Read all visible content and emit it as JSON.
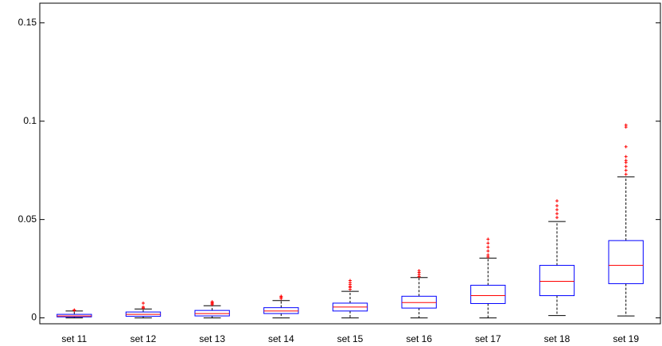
{
  "chart_data": {
    "type": "box",
    "categories": [
      "set 11",
      "set 12",
      "set 13",
      "set 14",
      "set 15",
      "set 16",
      "set 17",
      "set 18",
      "set 19"
    ],
    "boxes": [
      {
        "low": 0,
        "q1": 0.0005,
        "median": 0.001,
        "q3": 0.0018,
        "high": 0.0035,
        "outliers": [
          0.0038,
          0.004
        ]
      },
      {
        "low": 0,
        "q1": 0.0008,
        "median": 0.0018,
        "q3": 0.003,
        "high": 0.0045,
        "outliers": [
          0.005,
          0.0055,
          0.0075
        ]
      },
      {
        "low": 0,
        "q1": 0.001,
        "median": 0.0022,
        "q3": 0.0038,
        "high": 0.0062,
        "outliers": [
          0.0068,
          0.0072,
          0.0078,
          0.0082
        ]
      },
      {
        "low": 0,
        "q1": 0.0022,
        "median": 0.0035,
        "q3": 0.0052,
        "high": 0.0088,
        "outliers": [
          0.0098,
          0.0105,
          0.011
        ]
      },
      {
        "low": 0,
        "q1": 0.0035,
        "median": 0.0055,
        "q3": 0.0075,
        "high": 0.0135,
        "outliers": [
          0.0145,
          0.0155,
          0.016,
          0.017,
          0.018,
          0.019
        ]
      },
      {
        "low": 0,
        "q1": 0.005,
        "median": 0.0078,
        "q3": 0.011,
        "high": 0.0205,
        "outliers": [
          0.021,
          0.022,
          0.023,
          0.024
        ]
      },
      {
        "low": 0,
        "q1": 0.0073,
        "median": 0.0113,
        "q3": 0.0166,
        "high": 0.0304,
        "outliers": [
          0.031,
          0.032,
          0.034,
          0.036,
          0.038,
          0.04
        ]
      },
      {
        "low": 0.0012,
        "q1": 0.0113,
        "median": 0.0186,
        "q3": 0.0267,
        "high": 0.049,
        "outliers": [
          0.051,
          0.053,
          0.055,
          0.057,
          0.0595
        ]
      },
      {
        "low": 0.001,
        "q1": 0.0174,
        "median": 0.0267,
        "q3": 0.0393,
        "high": 0.0717,
        "outliers": [
          0.073,
          0.075,
          0.077,
          0.079,
          0.08,
          0.082,
          0.087,
          0.097,
          0.098
        ]
      }
    ],
    "box_color": "#0000ff",
    "median_color": "#ff0000",
    "whisker_color": "#000000",
    "outlier_color": "#ff0000",
    "ylim": [
      -0.003,
      0.16
    ],
    "yticks": [
      0,
      0.05,
      0.1,
      0.15
    ]
  }
}
